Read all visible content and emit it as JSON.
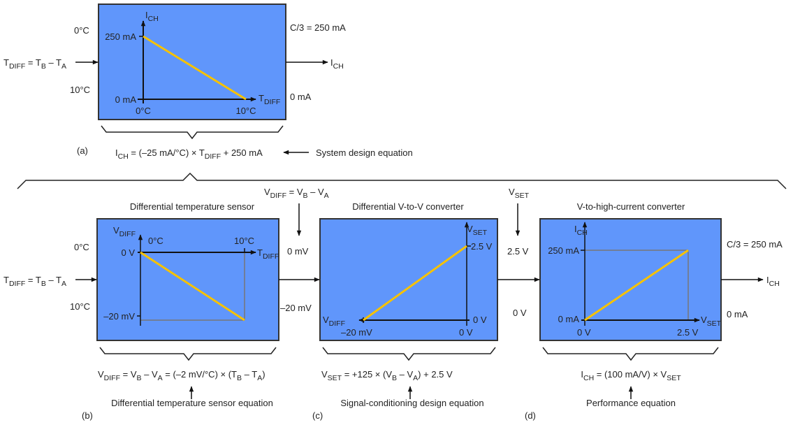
{
  "colors": {
    "box": "#6096fb",
    "curve": "#f6c200"
  },
  "a": {
    "label": "(a)",
    "y_axis": "I_{CH}",
    "y_top": "250 mA",
    "y_bottom": "0 mA",
    "x_axis": "T_{DIFF}",
    "x_left": "0°C",
    "x_right": "10°C",
    "in_top": "0°C",
    "input": "T_{DIFF} = T_{B} – T_{A}",
    "in_bottom": "10°C",
    "out_top": "C/3 = 250 mA",
    "output": "I_{CH}",
    "out_bottom": "0 mA",
    "equation": "I_{CH} = (–25 mA/°C) × T_{DIFF} + 250 mA",
    "equation_note": "System design equation"
  },
  "b": {
    "label": "(b)",
    "title": "Differential temperature sensor",
    "y_axis": "V_{DIFF}",
    "y_top": "0 V",
    "y_bottom": "–20 mV",
    "x_axis": "T_{DIFF}",
    "x_left": "0°C",
    "x_right": "10°C",
    "in_top": "0°C",
    "input": "T_{DIFF} = T_{B} – T_{A}",
    "in_bottom": "10°C",
    "equation": "V_{DIFF} = V_{B} – V_{A} = (–2 mV/°C) × (T_{B} – T_{A})",
    "equation_note": "Differential temperature sensor equation"
  },
  "bc": {
    "signal": "V_{DIFF} = V_{B} – V_{A}",
    "top": "0 mV",
    "bottom": "–20 mV"
  },
  "c": {
    "label": "(c)",
    "title": "Differential V-to-V converter",
    "y_axis": "V_{SET}",
    "y_top": "2.5 V",
    "y_bottom": "0 V",
    "x_axis": "V_{DIFF}",
    "x_left": "–20 mV",
    "x_right": "0 V",
    "equation": "V_{SET} = +125 × (V_{B} – V_{A}) + 2.5 V",
    "equation_note": "Signal-conditioning design equation"
  },
  "cd": {
    "signal": "V_{SET}",
    "top": "2.5 V",
    "bottom": "0 V"
  },
  "d": {
    "label": "(d)",
    "title": "V-to-high-current converter",
    "y_axis": "I_{CH}",
    "y_top": "250 mA",
    "y_bottom": "0 mA",
    "x_axis": "V_{SET}",
    "x_left": "0 V",
    "x_right": "2.5 V",
    "out_top": "C/3 = 250 mA",
    "output": "I_{CH}",
    "out_bottom": "0 mA",
    "equation": "I_{CH} = (100 mA/V) × V_{SET}",
    "equation_note": "Performance equation"
  }
}
